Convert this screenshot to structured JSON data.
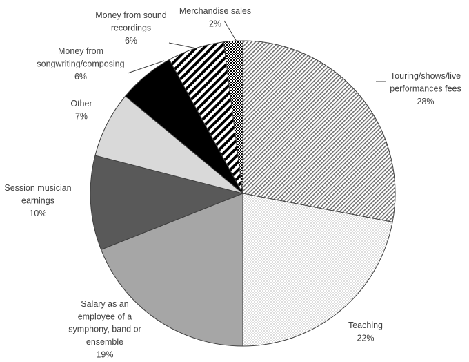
{
  "chart_data": {
    "type": "pie",
    "categories": [
      "Touring/shows/live performances fees",
      "Teaching",
      "Salary as an employee of a symphony, band or ensemble",
      "Session musician earnings",
      "Other",
      "Money from songwriting/composing",
      "Money from sound recordings",
      "Merchandise sales"
    ],
    "values": [
      28,
      22,
      19,
      10,
      7,
      6,
      6,
      2
    ],
    "value_labels": [
      "28%",
      "22%",
      "19%",
      "10%",
      "7%",
      "6%",
      "6%",
      "2%"
    ],
    "colors": [
      "#9a9a9a",
      "#d0d0d0",
      "#a6a6a6",
      "#595959",
      "#d9d9d9",
      "#000000",
      "#000000",
      "#000000"
    ],
    "patterns": [
      "hatch",
      "dots",
      null,
      null,
      null,
      null,
      "stripes",
      "checker"
    ]
  }
}
